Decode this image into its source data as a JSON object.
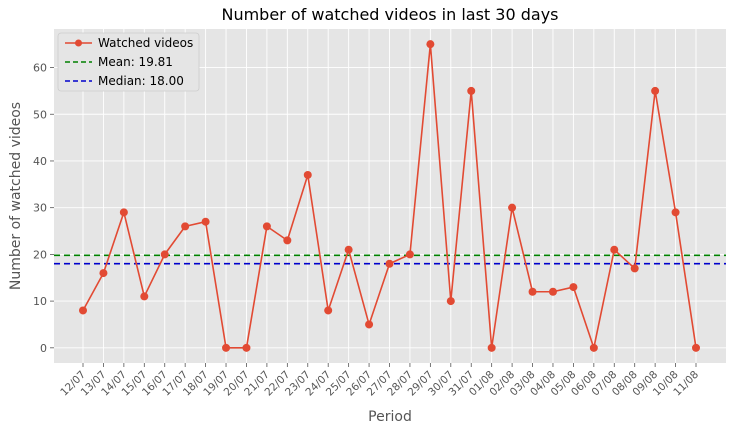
{
  "chart_data": {
    "type": "line",
    "title": "Number of watched videos in last 30 days",
    "xlabel": "Period",
    "ylabel": "Number of watched videos",
    "categories": [
      "12/07",
      "13/07",
      "14/07",
      "15/07",
      "16/07",
      "17/07",
      "18/07",
      "19/07",
      "20/07",
      "21/07",
      "22/07",
      "23/07",
      "24/07",
      "25/07",
      "26/07",
      "27/07",
      "28/07",
      "29/07",
      "30/07",
      "31/07",
      "01/08",
      "02/08",
      "03/08",
      "04/08",
      "05/08",
      "06/08",
      "07/08",
      "08/08",
      "09/08",
      "10/08",
      "11/08"
    ],
    "series": [
      {
        "name": "Watched videos",
        "color": "#E24A33",
        "values": [
          8,
          16,
          29,
          11,
          20,
          26,
          27,
          0,
          0,
          26,
          23,
          37,
          8,
          21,
          5,
          18,
          20,
          65,
          10,
          55,
          0,
          30,
          12,
          12,
          13,
          0,
          21,
          17,
          55,
          29,
          0
        ]
      }
    ],
    "reference_lines": [
      {
        "name": "Mean: 19.81",
        "value": 19.81,
        "color": "#008000",
        "style": "dashed"
      },
      {
        "name": "Median: 18.00",
        "value": 18.0,
        "color": "#0000CC",
        "style": "dashed"
      }
    ],
    "yticks": [
      0,
      10,
      20,
      30,
      40,
      50,
      60
    ],
    "ylim": [
      -3.25,
      68.25
    ],
    "grid": true,
    "legend_position": "top-left",
    "background": "#E5E5E5"
  }
}
